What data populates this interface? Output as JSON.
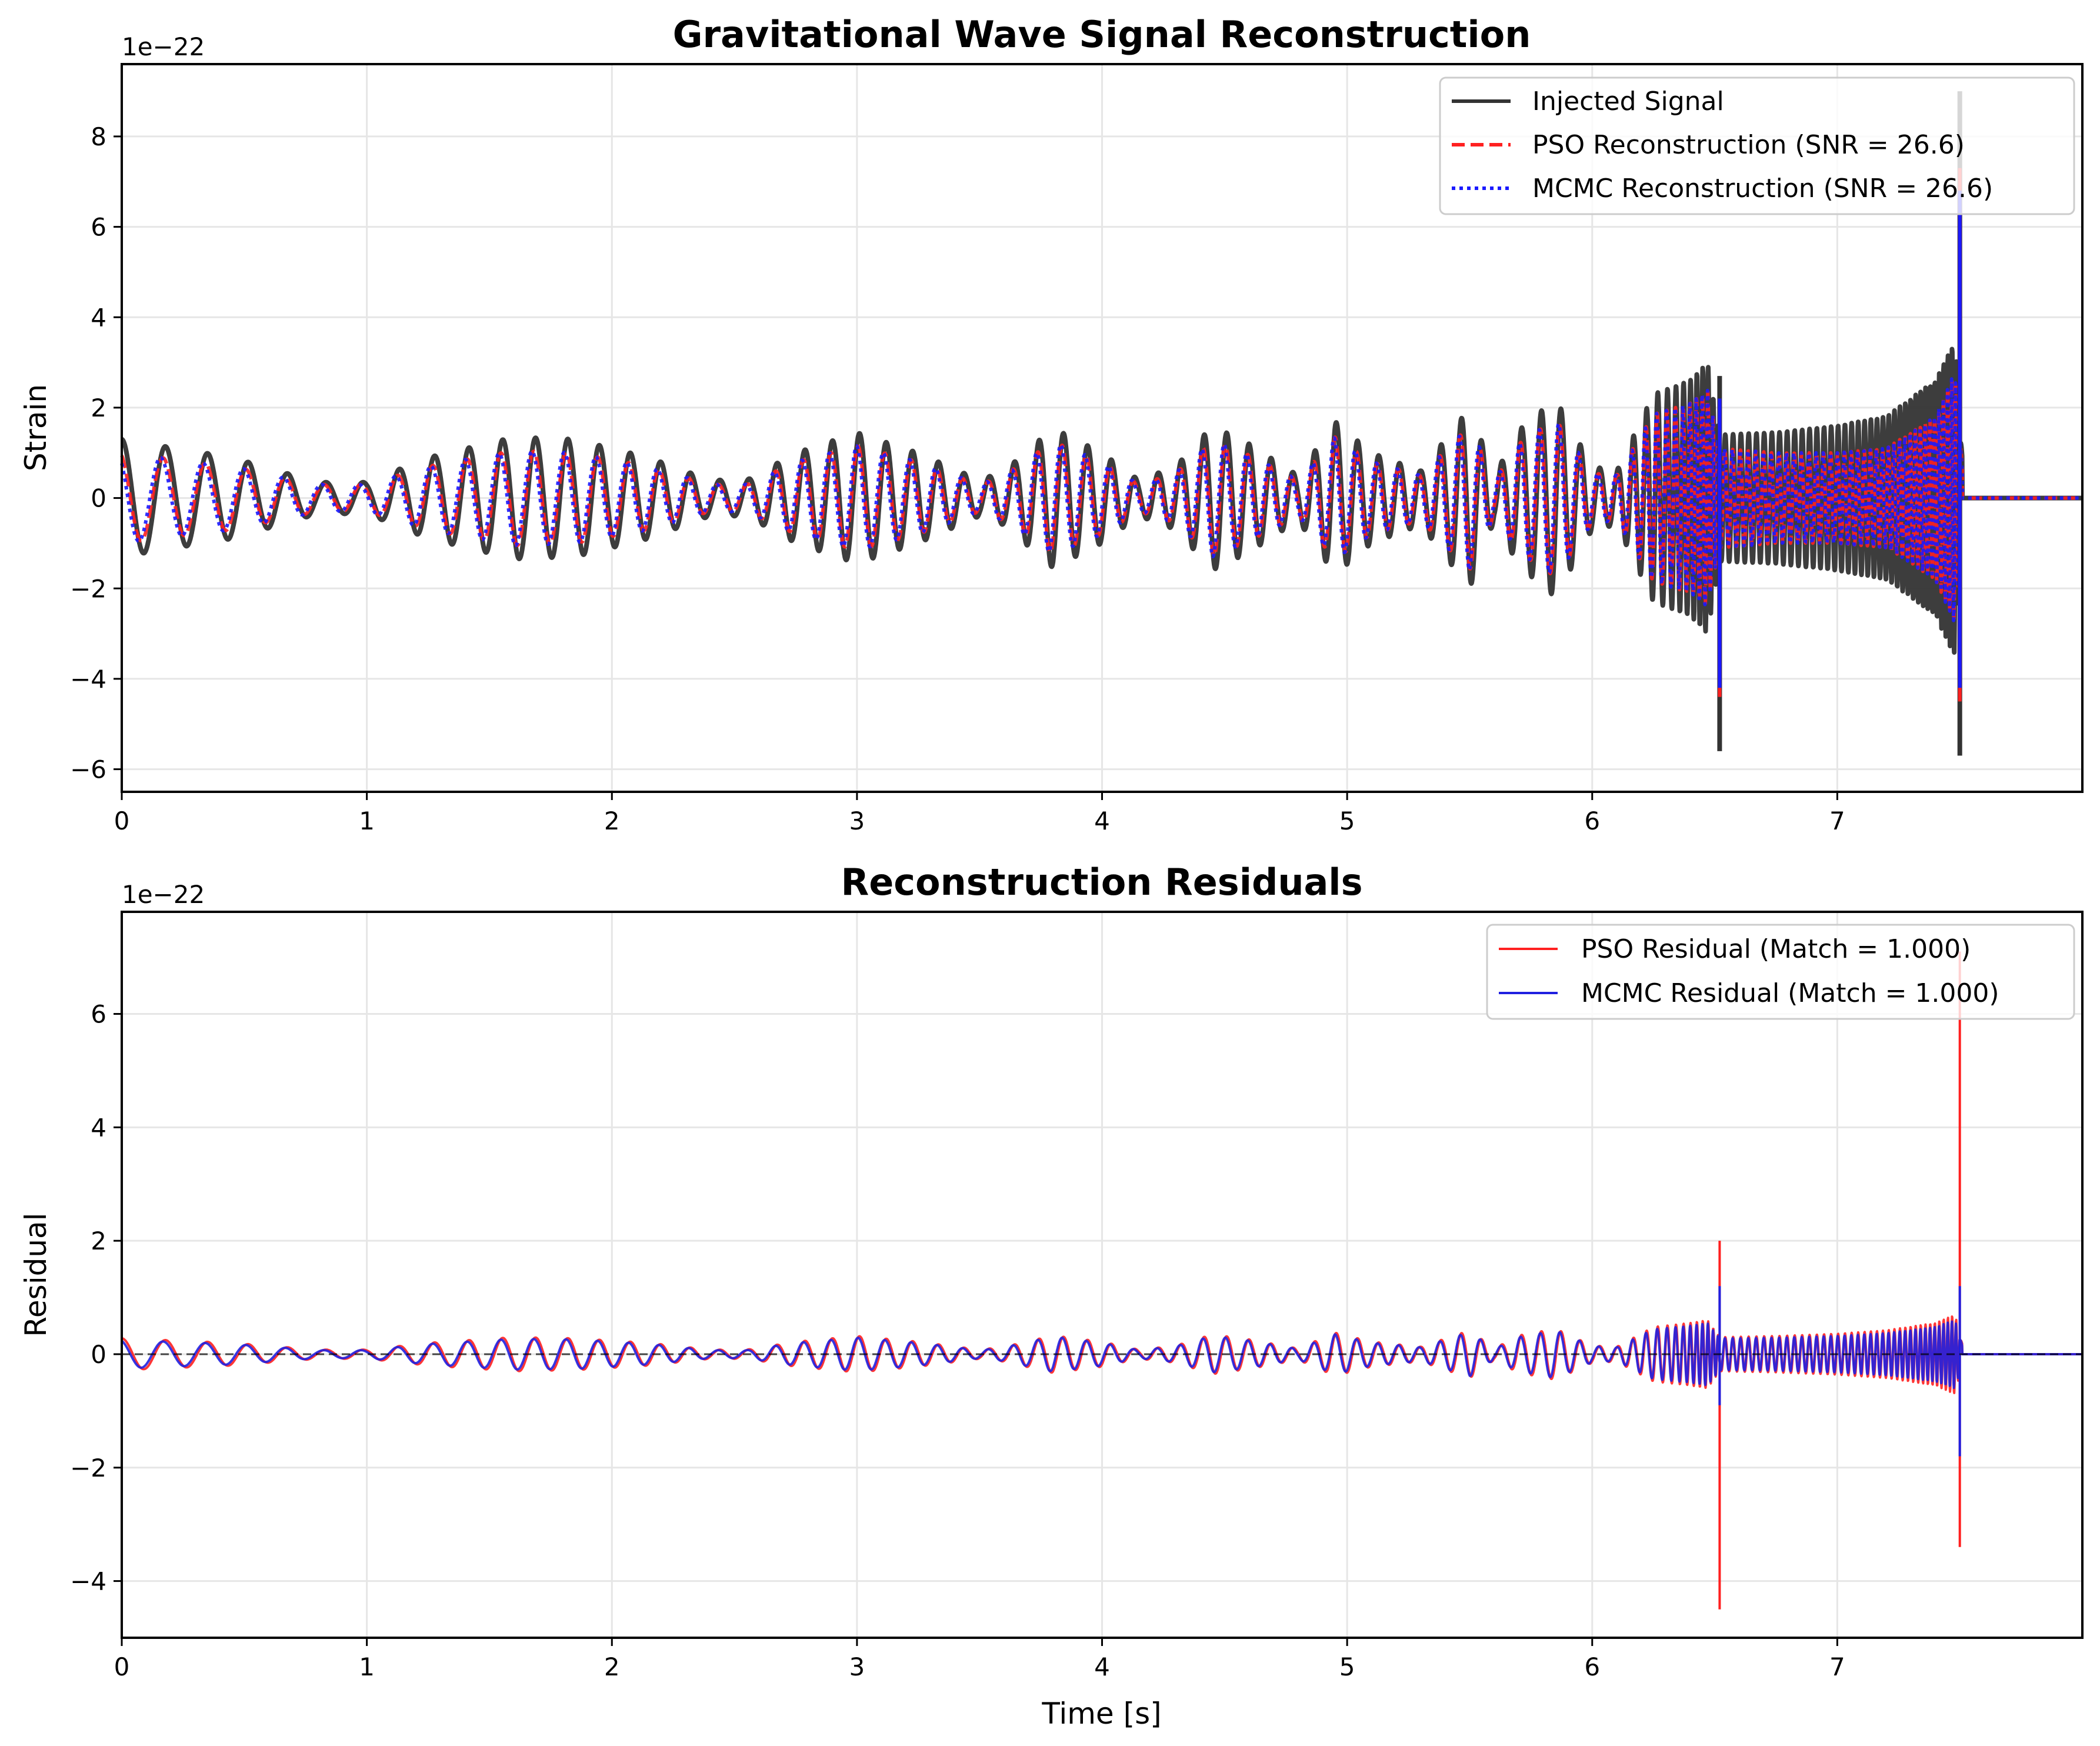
{
  "chart_data": [
    {
      "type": "line",
      "title": "Gravitational Wave Signal Reconstruction",
      "xlabel": "",
      "ylabel": "Strain",
      "offset_text": "1e−22",
      "xlim": [
        0,
        8
      ],
      "ylim": [
        -6.5,
        9.6
      ],
      "x_ticks": [
        0,
        1,
        2,
        3,
        4,
        5,
        6,
        7
      ],
      "x_tick_labels": [
        "0",
        "1",
        "2",
        "3",
        "4",
        "5",
        "6",
        "7"
      ],
      "y_ticks": [
        -6,
        -4,
        -2,
        0,
        2,
        4,
        6,
        8
      ],
      "y_tick_labels": [
        "−6",
        "−4",
        "−2",
        "0",
        "2",
        "4",
        "6",
        "8"
      ],
      "grid": true,
      "legend_position": "top-right",
      "series": [
        {
          "name": "Injected Signal",
          "color": "#333333",
          "style": "solid",
          "envelope": [
            [
              0,
              1.3
            ],
            [
              0.45,
              0.9
            ],
            [
              0.8,
              0.35
            ],
            [
              1.0,
              0.35
            ],
            [
              1.25,
              0.9
            ],
            [
              1.6,
              1.35
            ],
            [
              1.85,
              1.3
            ],
            [
              2.15,
              0.9
            ],
            [
              2.4,
              0.4
            ],
            [
              2.55,
              0.4
            ],
            [
              2.75,
              1.0
            ],
            [
              3.0,
              1.45
            ],
            [
              3.25,
              1.0
            ],
            [
              3.5,
              0.4
            ],
            [
              3.6,
              0.6
            ],
            [
              3.8,
              1.55
            ],
            [
              4.0,
              1.0
            ],
            [
              4.15,
              0.4
            ],
            [
              4.3,
              0.7
            ],
            [
              4.45,
              1.6
            ],
            [
              4.6,
              1.2
            ],
            [
              4.8,
              0.5
            ],
            [
              4.95,
              1.7
            ],
            [
              5.1,
              1.0
            ],
            [
              5.3,
              0.6
            ],
            [
              5.5,
              2.0
            ],
            [
              5.6,
              0.5
            ],
            [
              5.7,
              1.5
            ],
            [
              5.85,
              2.2
            ],
            [
              6.0,
              0.7
            ],
            [
              6.1,
              0.6
            ],
            [
              6.25,
              2.3
            ],
            [
              6.4,
              2.6
            ],
            [
              6.47,
              3.0
            ],
            [
              6.52,
              1.4
            ],
            [
              6.75,
              1.45
            ],
            [
              7.0,
              1.6
            ],
            [
              7.2,
              1.8
            ],
            [
              7.4,
              2.6
            ],
            [
              7.48,
              3.5
            ],
            [
              7.52,
              0.0
            ],
            [
              8.0,
              0.0
            ]
          ]
        },
        {
          "name": "PSO Reconstruction (SNR = 26.6)",
          "color": "#ff2020",
          "style": "dashed",
          "envelope": [
            [
              0,
              1.0
            ],
            [
              0.45,
              0.7
            ],
            [
              0.8,
              0.3
            ],
            [
              1.0,
              0.3
            ],
            [
              1.25,
              0.7
            ],
            [
              1.6,
              1.05
            ],
            [
              1.85,
              1.0
            ],
            [
              2.15,
              0.7
            ],
            [
              2.4,
              0.3
            ],
            [
              2.55,
              0.3
            ],
            [
              2.75,
              0.8
            ],
            [
              3.0,
              1.15
            ],
            [
              3.25,
              0.8
            ],
            [
              3.5,
              0.3
            ],
            [
              3.6,
              0.5
            ],
            [
              3.8,
              1.25
            ],
            [
              4.0,
              0.8
            ],
            [
              4.15,
              0.3
            ],
            [
              4.3,
              0.55
            ],
            [
              4.45,
              1.3
            ],
            [
              4.6,
              0.95
            ],
            [
              4.8,
              0.4
            ],
            [
              4.95,
              1.35
            ],
            [
              5.1,
              0.8
            ],
            [
              5.3,
              0.5
            ],
            [
              5.5,
              1.6
            ],
            [
              5.6,
              0.4
            ],
            [
              5.7,
              1.2
            ],
            [
              5.85,
              1.75
            ],
            [
              6.0,
              0.55
            ],
            [
              6.1,
              0.5
            ],
            [
              6.25,
              1.85
            ],
            [
              6.4,
              2.1
            ],
            [
              6.47,
              2.4
            ],
            [
              6.52,
              1.1
            ],
            [
              6.75,
              1.0
            ],
            [
              7.0,
              1.0
            ],
            [
              7.2,
              1.1
            ],
            [
              7.4,
              1.8
            ],
            [
              7.48,
              2.8
            ],
            [
              7.52,
              0.0
            ],
            [
              8.0,
              0.0
            ]
          ]
        },
        {
          "name": "MCMC Reconstruction (SNR = 26.6)",
          "color": "#1a1aff",
          "style": "dotted",
          "envelope": [
            [
              0,
              1.0
            ],
            [
              0.45,
              0.7
            ],
            [
              0.8,
              0.3
            ],
            [
              1.0,
              0.3
            ],
            [
              1.25,
              0.7
            ],
            [
              1.6,
              1.05
            ],
            [
              1.85,
              1.0
            ],
            [
              2.15,
              0.7
            ],
            [
              2.4,
              0.3
            ],
            [
              2.55,
              0.3
            ],
            [
              2.75,
              0.8
            ],
            [
              3.0,
              1.15
            ],
            [
              3.25,
              0.8
            ],
            [
              3.5,
              0.3
            ],
            [
              3.6,
              0.5
            ],
            [
              3.8,
              1.25
            ],
            [
              4.0,
              0.8
            ],
            [
              4.15,
              0.3
            ],
            [
              4.3,
              0.55
            ],
            [
              4.45,
              1.3
            ],
            [
              4.6,
              0.95
            ],
            [
              4.8,
              0.4
            ],
            [
              4.95,
              1.35
            ],
            [
              5.1,
              0.8
            ],
            [
              5.3,
              0.5
            ],
            [
              5.5,
              1.6
            ],
            [
              5.6,
              0.4
            ],
            [
              5.7,
              1.2
            ],
            [
              5.85,
              1.75
            ],
            [
              6.0,
              0.55
            ],
            [
              6.1,
              0.5
            ],
            [
              6.25,
              1.85
            ],
            [
              6.4,
              2.1
            ],
            [
              6.47,
              2.4
            ],
            [
              6.52,
              1.1
            ],
            [
              6.75,
              1.0
            ],
            [
              7.0,
              1.0
            ],
            [
              7.2,
              1.1
            ],
            [
              7.4,
              1.8
            ],
            [
              7.48,
              2.8
            ],
            [
              7.52,
              0.0
            ],
            [
              8.0,
              0.0
            ]
          ]
        }
      ],
      "spikes": [
        {
          "series": 0,
          "x": 6.52,
          "max": 2.7,
          "min": -5.6
        },
        {
          "series": 1,
          "x": 6.52,
          "max": 2.2,
          "min": -4.4
        },
        {
          "series": 2,
          "x": 6.52,
          "max": 2.2,
          "min": -4.2
        },
        {
          "series": 0,
          "x": 7.5,
          "max": 9.0,
          "min": -5.7
        },
        {
          "series": 1,
          "x": 7.5,
          "max": 7.3,
          "min": -4.5
        },
        {
          "series": 2,
          "x": 7.5,
          "max": 6.8,
          "min": -4.2
        }
      ]
    },
    {
      "type": "line",
      "title": "Reconstruction Residuals",
      "xlabel": "Time [s]",
      "ylabel": "Residual",
      "offset_text": "1e−22",
      "xlim": [
        0,
        8
      ],
      "ylim": [
        -5.0,
        7.8
      ],
      "x_ticks": [
        0,
        1,
        2,
        3,
        4,
        5,
        6,
        7
      ],
      "x_tick_labels": [
        "0",
        "1",
        "2",
        "3",
        "4",
        "5",
        "6",
        "7"
      ],
      "y_ticks": [
        -4,
        -2,
        0,
        2,
        4,
        6
      ],
      "y_tick_labels": [
        "−4",
        "−2",
        "0",
        "2",
        "4",
        "6"
      ],
      "grid": true,
      "zero_line": true,
      "legend_position": "top-right",
      "series": [
        {
          "name": "PSO Residual (Match = 1.000)",
          "color": "#ff2020",
          "style": "solid",
          "envelope": [
            [
              0,
              0.28
            ],
            [
              0.45,
              0.2
            ],
            [
              0.8,
              0.08
            ],
            [
              1.0,
              0.08
            ],
            [
              1.25,
              0.2
            ],
            [
              1.6,
              0.3
            ],
            [
              1.85,
              0.28
            ],
            [
              2.15,
              0.2
            ],
            [
              2.4,
              0.08
            ],
            [
              2.55,
              0.08
            ],
            [
              2.75,
              0.22
            ],
            [
              3.0,
              0.32
            ],
            [
              3.25,
              0.22
            ],
            [
              3.5,
              0.08
            ],
            [
              3.6,
              0.13
            ],
            [
              3.8,
              0.33
            ],
            [
              4.0,
              0.22
            ],
            [
              4.15,
              0.08
            ],
            [
              4.3,
              0.15
            ],
            [
              4.45,
              0.35
            ],
            [
              4.6,
              0.26
            ],
            [
              4.8,
              0.1
            ],
            [
              4.95,
              0.38
            ],
            [
              5.1,
              0.22
            ],
            [
              5.3,
              0.13
            ],
            [
              5.5,
              0.42
            ],
            [
              5.6,
              0.1
            ],
            [
              5.7,
              0.33
            ],
            [
              5.85,
              0.45
            ],
            [
              6.0,
              0.15
            ],
            [
              6.1,
              0.13
            ],
            [
              6.25,
              0.48
            ],
            [
              6.4,
              0.55
            ],
            [
              6.47,
              0.6
            ],
            [
              6.52,
              0.3
            ],
            [
              6.75,
              0.32
            ],
            [
              7.0,
              0.36
            ],
            [
              7.2,
              0.42
            ],
            [
              7.4,
              0.55
            ],
            [
              7.48,
              0.7
            ],
            [
              7.52,
              0.0
            ],
            [
              8.0,
              0.0
            ]
          ]
        },
        {
          "name": "MCMC Residual (Match = 1.000)",
          "color": "#2020e0",
          "style": "solid",
          "envelope": [
            [
              0,
              0.25
            ],
            [
              0.45,
              0.18
            ],
            [
              0.8,
              0.07
            ],
            [
              1.0,
              0.07
            ],
            [
              1.25,
              0.18
            ],
            [
              1.6,
              0.27
            ],
            [
              1.85,
              0.26
            ],
            [
              2.15,
              0.18
            ],
            [
              2.4,
              0.07
            ],
            [
              2.55,
              0.07
            ],
            [
              2.75,
              0.2
            ],
            [
              3.0,
              0.29
            ],
            [
              3.25,
              0.2
            ],
            [
              3.5,
              0.07
            ],
            [
              3.6,
              0.12
            ],
            [
              3.8,
              0.31
            ],
            [
              4.0,
              0.2
            ],
            [
              4.15,
              0.07
            ],
            [
              4.3,
              0.14
            ],
            [
              4.45,
              0.32
            ],
            [
              4.6,
              0.24
            ],
            [
              4.8,
              0.09
            ],
            [
              4.95,
              0.35
            ],
            [
              5.1,
              0.2
            ],
            [
              5.3,
              0.12
            ],
            [
              5.5,
              0.39
            ],
            [
              5.6,
              0.09
            ],
            [
              5.7,
              0.3
            ],
            [
              5.85,
              0.42
            ],
            [
              6.0,
              0.14
            ],
            [
              6.1,
              0.12
            ],
            [
              6.25,
              0.44
            ],
            [
              6.4,
              0.5
            ],
            [
              6.47,
              0.55
            ],
            [
              6.52,
              0.28
            ],
            [
              6.75,
              0.29
            ],
            [
              7.0,
              0.32
            ],
            [
              7.2,
              0.37
            ],
            [
              7.4,
              0.48
            ],
            [
              7.48,
              0.6
            ],
            [
              7.52,
              0.0
            ],
            [
              8.0,
              0.0
            ]
          ]
        }
      ],
      "spikes": [
        {
          "series": 0,
          "x": 6.52,
          "max": 2.0,
          "min": -4.5
        },
        {
          "series": 1,
          "x": 6.52,
          "max": 1.2,
          "min": -0.9
        },
        {
          "series": 0,
          "x": 7.5,
          "max": 7.1,
          "min": -3.4
        },
        {
          "series": 1,
          "x": 7.5,
          "max": 1.2,
          "min": -1.8
        }
      ]
    }
  ]
}
